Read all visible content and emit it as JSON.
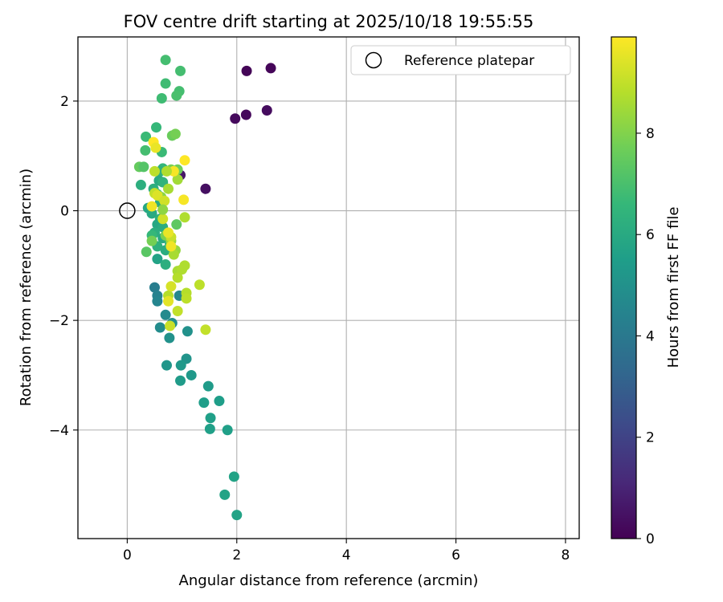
{
  "chart_data": {
    "type": "scatter",
    "title": "FOV centre drift starting at 2025/10/18 19:55:55",
    "xlabel": "Angular distance from reference (arcmin)",
    "ylabel": "Rotation from reference (arcmin)",
    "xlim": [
      -0.9,
      8.25
    ],
    "ylim": [
      -5.98,
      3.17
    ],
    "xticks": [
      0,
      2,
      4,
      6,
      8
    ],
    "yticks": [
      -4,
      -2,
      0,
      2
    ],
    "grid": true,
    "legend": {
      "label": "Reference platepar",
      "position": "top-right"
    },
    "reference_point": {
      "x": 0,
      "y": 0
    },
    "colorbar": {
      "label": "Hours from first FF file",
      "range": [
        0,
        9.9
      ],
      "ticks": [
        0,
        2,
        4,
        6,
        8
      ],
      "colormap": "viridis",
      "stops": [
        "#440154",
        "#482878",
        "#3e4989",
        "#31688e",
        "#26828e",
        "#1f9e89",
        "#35b779",
        "#6ece58",
        "#b5de2b",
        "#fde725"
      ]
    },
    "points": [
      {
        "x": 2.18,
        "y": 2.55,
        "h": 0.1
      },
      {
        "x": 2.62,
        "y": 2.6,
        "h": 0.15
      },
      {
        "x": 2.17,
        "y": 1.75,
        "h": 0.2
      },
      {
        "x": 1.97,
        "y": 1.68,
        "h": 0.25
      },
      {
        "x": 2.55,
        "y": 1.83,
        "h": 0.3
      },
      {
        "x": 1.43,
        "y": 0.4,
        "h": 0.4
      },
      {
        "x": 0.97,
        "y": 0.65,
        "h": 0.6
      },
      {
        "x": 0.5,
        "y": -1.4,
        "h": 4.2
      },
      {
        "x": 0.55,
        "y": -1.55,
        "h": 4.4
      },
      {
        "x": 0.55,
        "y": -1.65,
        "h": 4.5
      },
      {
        "x": 0.95,
        "y": -1.55,
        "h": 4.6
      },
      {
        "x": 0.7,
        "y": -1.9,
        "h": 4.7
      },
      {
        "x": 0.6,
        "y": -2.13,
        "h": 4.8
      },
      {
        "x": 0.82,
        "y": -2.05,
        "h": 4.9
      },
      {
        "x": 1.1,
        "y": -2.2,
        "h": 5.0
      },
      {
        "x": 0.77,
        "y": -2.32,
        "h": 5.0
      },
      {
        "x": 1.08,
        "y": -2.7,
        "h": 5.1
      },
      {
        "x": 0.72,
        "y": -2.82,
        "h": 5.2
      },
      {
        "x": 0.98,
        "y": -2.82,
        "h": 5.3
      },
      {
        "x": 1.17,
        "y": -3.0,
        "h": 5.3
      },
      {
        "x": 0.97,
        "y": -3.1,
        "h": 5.4
      },
      {
        "x": 1.48,
        "y": -3.2,
        "h": 5.4
      },
      {
        "x": 1.4,
        "y": -3.5,
        "h": 5.5
      },
      {
        "x": 1.68,
        "y": -3.47,
        "h": 5.5
      },
      {
        "x": 1.52,
        "y": -3.78,
        "h": 5.6
      },
      {
        "x": 1.51,
        "y": -3.98,
        "h": 5.6
      },
      {
        "x": 1.83,
        "y": -4.0,
        "h": 5.6
      },
      {
        "x": 1.95,
        "y": -4.85,
        "h": 5.7
      },
      {
        "x": 1.78,
        "y": -5.18,
        "h": 5.7
      },
      {
        "x": 2.0,
        "y": -5.55,
        "h": 5.7
      },
      {
        "x": 0.7,
        "y": 2.75,
        "h": 6.9
      },
      {
        "x": 0.97,
        "y": 2.55,
        "h": 6.9
      },
      {
        "x": 0.7,
        "y": 2.32,
        "h": 6.8
      },
      {
        "x": 0.95,
        "y": 2.18,
        "h": 6.9
      },
      {
        "x": 0.9,
        "y": 2.1,
        "h": 7.0
      },
      {
        "x": 0.63,
        "y": 2.05,
        "h": 6.8
      },
      {
        "x": 0.53,
        "y": 1.52,
        "h": 6.6
      },
      {
        "x": 0.34,
        "y": 1.35,
        "h": 6.7
      },
      {
        "x": 0.33,
        "y": 1.1,
        "h": 6.9
      },
      {
        "x": 0.63,
        "y": 1.07,
        "h": 6.7
      },
      {
        "x": 0.22,
        "y": 0.8,
        "h": 7.5
      },
      {
        "x": 0.3,
        "y": 0.8,
        "h": 7.2
      },
      {
        "x": 0.65,
        "y": 0.77,
        "h": 6.5
      },
      {
        "x": 0.6,
        "y": 0.72,
        "h": 6.3
      },
      {
        "x": 0.58,
        "y": 0.55,
        "h": 6.0
      },
      {
        "x": 0.65,
        "y": 0.52,
        "h": 6.4
      },
      {
        "x": 0.25,
        "y": 0.47,
        "h": 6.2
      },
      {
        "x": 0.48,
        "y": 0.4,
        "h": 6.2
      },
      {
        "x": 0.55,
        "y": 0.3,
        "h": 6.5
      },
      {
        "x": 0.6,
        "y": 0.15,
        "h": 6.1
      },
      {
        "x": 0.38,
        "y": 0.05,
        "h": 5.9
      },
      {
        "x": 0.45,
        "y": -0.05,
        "h": 6.0
      },
      {
        "x": 0.6,
        "y": -0.15,
        "h": 6.3
      },
      {
        "x": 0.55,
        "y": -0.25,
        "h": 5.9
      },
      {
        "x": 0.65,
        "y": -0.3,
        "h": 6.1
      },
      {
        "x": 0.5,
        "y": -0.4,
        "h": 6.2
      },
      {
        "x": 0.45,
        "y": -0.45,
        "h": 6.6
      },
      {
        "x": 0.65,
        "y": -0.5,
        "h": 6.0
      },
      {
        "x": 0.55,
        "y": -0.65,
        "h": 6.3
      },
      {
        "x": 0.7,
        "y": -0.72,
        "h": 6.1
      },
      {
        "x": 0.55,
        "y": -0.88,
        "h": 5.7
      },
      {
        "x": 0.7,
        "y": -0.98,
        "h": 6.2
      },
      {
        "x": 0.78,
        "y": -0.6,
        "h": 6.4
      },
      {
        "x": 0.82,
        "y": 1.37,
        "h": 7.6
      },
      {
        "x": 0.88,
        "y": 1.4,
        "h": 7.8
      },
      {
        "x": 0.92,
        "y": 0.75,
        "h": 7.7
      },
      {
        "x": 0.8,
        "y": 0.75,
        "h": 7.9
      },
      {
        "x": 0.92,
        "y": 0.57,
        "h": 8.5
      },
      {
        "x": 0.9,
        "y": -0.25,
        "h": 7.4
      },
      {
        "x": 0.35,
        "y": -0.75,
        "h": 7.3
      },
      {
        "x": 0.45,
        "y": -0.55,
        "h": 7.8
      },
      {
        "x": 0.7,
        "y": -0.45,
        "h": 7.9
      },
      {
        "x": 0.62,
        "y": 0.25,
        "h": 8.1
      },
      {
        "x": 0.8,
        "y": -0.55,
        "h": 8.4
      },
      {
        "x": 0.88,
        "y": -0.72,
        "h": 8.3
      },
      {
        "x": 0.85,
        "y": -0.8,
        "h": 8.6
      },
      {
        "x": 1.05,
        "y": -0.12,
        "h": 8.7
      },
      {
        "x": 1.05,
        "y": -1.0,
        "h": 8.7
      },
      {
        "x": 0.92,
        "y": -1.1,
        "h": 8.6
      },
      {
        "x": 0.92,
        "y": -1.22,
        "h": 8.8
      },
      {
        "x": 1.0,
        "y": -1.07,
        "h": 8.7
      },
      {
        "x": 1.08,
        "y": -1.5,
        "h": 8.8
      },
      {
        "x": 1.08,
        "y": -1.6,
        "h": 8.9
      },
      {
        "x": 1.32,
        "y": -1.35,
        "h": 8.9
      },
      {
        "x": 0.75,
        "y": -1.55,
        "h": 8.8
      },
      {
        "x": 0.92,
        "y": -1.83,
        "h": 9.0
      },
      {
        "x": 1.43,
        "y": -2.17,
        "h": 9.0
      },
      {
        "x": 0.78,
        "y": -2.1,
        "h": 9.1
      },
      {
        "x": 0.8,
        "y": -1.38,
        "h": 9.3
      },
      {
        "x": 0.75,
        "y": -1.65,
        "h": 9.5
      },
      {
        "x": 0.8,
        "y": -0.48,
        "h": 9.1
      },
      {
        "x": 0.75,
        "y": -0.4,
        "h": 9.6
      },
      {
        "x": 0.65,
        "y": -0.15,
        "h": 9.2
      },
      {
        "x": 0.45,
        "y": 0.08,
        "h": 9.7
      },
      {
        "x": 0.5,
        "y": 0.32,
        "h": 9.0
      },
      {
        "x": 0.55,
        "y": 0.28,
        "h": 9.4
      },
      {
        "x": 0.68,
        "y": 0.18,
        "h": 9.2
      },
      {
        "x": 1.03,
        "y": 0.2,
        "h": 9.8
      },
      {
        "x": 0.5,
        "y": 0.72,
        "h": 8.9
      },
      {
        "x": 0.85,
        "y": 0.72,
        "h": 9.8
      },
      {
        "x": 0.72,
        "y": 0.72,
        "h": 8.7
      },
      {
        "x": 1.05,
        "y": 0.92,
        "h": 9.9
      },
      {
        "x": 0.48,
        "y": 1.25,
        "h": 9.9
      },
      {
        "x": 0.52,
        "y": 1.15,
        "h": 9.6
      },
      {
        "x": 0.75,
        "y": 0.4,
        "h": 8.6
      },
      {
        "x": 0.65,
        "y": 0.02,
        "h": 8.2
      },
      {
        "x": 0.8,
        "y": -0.65,
        "h": 9.7
      }
    ]
  }
}
